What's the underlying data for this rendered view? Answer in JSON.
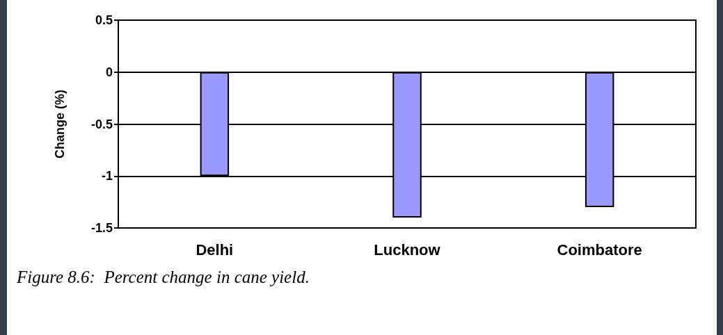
{
  "chart_data": {
    "type": "bar",
    "ylabel": "Change (%)",
    "categories": [
      "Delhi",
      "Lucknow",
      "Coimbatore"
    ],
    "values": [
      -1,
      -1.4,
      -1.3
    ],
    "color": "#9999ff",
    "ylim": [
      -1.5,
      0.5
    ],
    "yticks": [
      0.5,
      0,
      -0.5,
      -1,
      -1.5
    ],
    "grid": "y",
    "annotations": [
      "Figure 8.6:  Percent change in cane yield."
    ]
  }
}
